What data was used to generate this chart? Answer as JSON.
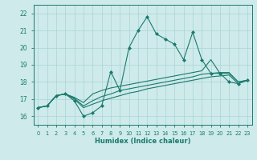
{
  "x_values": [
    0,
    1,
    2,
    3,
    4,
    5,
    6,
    7,
    8,
    9,
    10,
    11,
    12,
    13,
    14,
    15,
    16,
    17,
    18,
    19,
    20,
    21,
    22,
    23
  ],
  "line1": [
    16.5,
    16.6,
    17.2,
    17.3,
    16.9,
    16.0,
    16.2,
    16.6,
    18.6,
    17.5,
    20.0,
    21.0,
    21.8,
    20.8,
    20.5,
    20.2,
    19.3,
    20.9,
    19.3,
    18.5,
    18.5,
    18.0,
    17.9,
    18.1
  ],
  "line2": [
    16.5,
    16.6,
    17.2,
    17.3,
    17.1,
    16.8,
    17.3,
    17.5,
    17.65,
    17.75,
    17.85,
    17.95,
    18.05,
    18.15,
    18.25,
    18.35,
    18.45,
    18.55,
    18.65,
    19.3,
    18.5,
    18.5,
    18.0,
    18.1
  ],
  "line3": [
    16.5,
    16.6,
    17.2,
    17.3,
    17.05,
    16.6,
    16.9,
    17.15,
    17.3,
    17.5,
    17.6,
    17.7,
    17.8,
    17.9,
    18.0,
    18.1,
    18.2,
    18.3,
    18.45,
    18.5,
    18.55,
    18.55,
    18.0,
    18.1
  ],
  "line4": [
    16.5,
    16.6,
    17.2,
    17.3,
    17.0,
    16.5,
    16.7,
    16.9,
    17.05,
    17.2,
    17.35,
    17.45,
    17.6,
    17.7,
    17.8,
    17.9,
    18.0,
    18.1,
    18.2,
    18.3,
    18.35,
    18.4,
    17.9,
    18.1
  ],
  "color": "#1a7a6e",
  "bg_color": "#ceeaea",
  "grid_color": "#aad4d4",
  "xlabel": "Humidex (Indice chaleur)",
  "ylim": [
    15.5,
    22.5
  ],
  "xlim": [
    -0.5,
    23.5
  ],
  "yticks": [
    16,
    17,
    18,
    19,
    20,
    21,
    22
  ],
  "xticks": [
    0,
    1,
    2,
    3,
    4,
    5,
    6,
    7,
    8,
    9,
    10,
    11,
    12,
    13,
    14,
    15,
    16,
    17,
    18,
    19,
    20,
    21,
    22,
    23
  ]
}
